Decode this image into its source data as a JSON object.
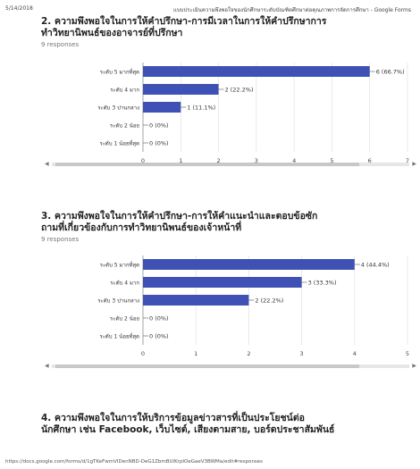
{
  "header": {
    "date": "5/14/2018",
    "title": "แบบประเมินความพึงพอใจของนักศึกษาระดับบัณฑิตศึกษาต่อคุณภาพการจัดการศึกษา - Google Forms"
  },
  "footer": {
    "url": "https://docs.google.com/forms/d/1gTKeFwmVIDenNBD-DeG1ZbmBUlKrpIOeGaeV3BWMa/edit#responses"
  },
  "questions": [
    {
      "title_line1": "2. ความพึงพอใจในการให้คำปรึกษา-การมีเวลาในการให้คำปรึกษาการ",
      "title_line2": "ทำวิทยานิพนธ์ของอาจารย์ที่ปรึกษา",
      "responses": "9 responses"
    },
    {
      "title_line1": "3. ความพึงพอใจในการให้คำปรึกษา-การให้คำแนะนำและตอบข้อซัก",
      "title_line2": "ถามที่เกี่ยวข้องกับการทำวิทยานิพนธ์ของเจ้าหน้าที่",
      "responses": "9 responses"
    },
    {
      "title_line1": "4. ความพึงพอใจในการให้บริการข้อมูลข่าวสารที่เป็นประโยชน์ต่อ",
      "title_line2": "นักศึกษา เช่น Facebook, เว็บไซต์, เสียงตามสาย, บอร์ดประชาสัมพันธ์"
    }
  ],
  "chart_data": [
    {
      "type": "bar",
      "orientation": "horizontal",
      "categories": [
        "ระดับ 5 มากที่สุด",
        "ระดับ 4 มาก",
        "ระดับ 3 ปานกลาง",
        "ระดับ 2 น้อย",
        "ระดับ 1 น้อยที่สุด"
      ],
      "values": [
        6,
        2,
        1,
        0,
        0
      ],
      "data_labels": [
        "6 (66.7%)",
        "2 (22.2%)",
        "1 (11.1%)",
        "0 (0%)",
        "0 (0%)"
      ],
      "xlim": [
        0,
        7
      ],
      "xticks": [
        "0",
        "1",
        "2",
        "3",
        "4",
        "5",
        "6",
        "7"
      ],
      "grid": true,
      "bar_color": "#3f51b5"
    },
    {
      "type": "bar",
      "orientation": "horizontal",
      "categories": [
        "ระดับ 5 มากที่สุด",
        "ระดับ 4 มาก",
        "ระดับ 3 ปานกลาง",
        "ระดับ 2 น้อย",
        "ระดับ 1 น้อยที่สุด"
      ],
      "values": [
        4,
        3,
        2,
        0,
        0
      ],
      "data_labels": [
        "4 (44.4%)",
        "3 (33.3%)",
        "2 (22.2%)",
        "0 (0%)",
        "0 (0%)"
      ],
      "xlim": [
        0,
        5
      ],
      "xticks": [
        "0",
        "1",
        "2",
        "3",
        "4",
        "5"
      ],
      "grid": true,
      "bar_color": "#3f51b5"
    }
  ]
}
